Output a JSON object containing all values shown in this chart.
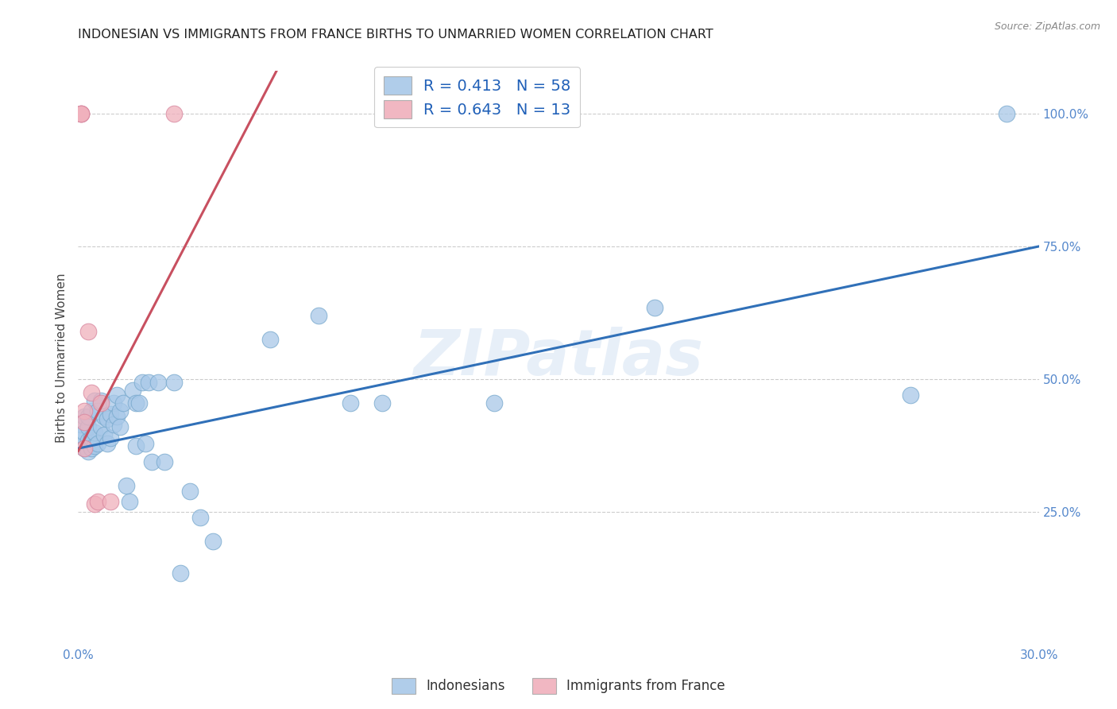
{
  "title": "INDONESIAN VS IMMIGRANTS FROM FRANCE BIRTHS TO UNMARRIED WOMEN CORRELATION CHART",
  "source": "Source: ZipAtlas.com",
  "ylabel": "Births to Unmarried Women",
  "xmin": 0.0,
  "xmax": 0.3,
  "ymin": 0.0,
  "ymax": 1.08,
  "x_ticks": [
    0.0,
    0.05,
    0.1,
    0.15,
    0.2,
    0.25,
    0.3
  ],
  "x_tick_labels": [
    "0.0%",
    "",
    "",
    "",
    "",
    "",
    "30.0%"
  ],
  "y_ticks": [
    0.0,
    0.25,
    0.5,
    0.75,
    1.0
  ],
  "y_tick_labels": [
    "",
    "25.0%",
    "50.0%",
    "75.0%",
    "100.0%"
  ],
  "blue_R": 0.413,
  "blue_N": 58,
  "pink_R": 0.643,
  "pink_N": 13,
  "blue_color": "#a8c8e8",
  "pink_color": "#f0b0bc",
  "blue_edge_color": "#7aaace",
  "pink_edge_color": "#d888a0",
  "blue_line_color": "#3070b8",
  "pink_line_color": "#c85060",
  "watermark": "ZIPatlas",
  "blue_scatter_x": [
    0.001,
    0.001,
    0.001,
    0.002,
    0.002,
    0.002,
    0.003,
    0.003,
    0.003,
    0.003,
    0.004,
    0.004,
    0.004,
    0.005,
    0.005,
    0.005,
    0.006,
    0.006,
    0.007,
    0.007,
    0.008,
    0.008,
    0.009,
    0.009,
    0.01,
    0.01,
    0.011,
    0.011,
    0.012,
    0.012,
    0.013,
    0.013,
    0.014,
    0.015,
    0.016,
    0.017,
    0.018,
    0.018,
    0.019,
    0.02,
    0.021,
    0.022,
    0.023,
    0.025,
    0.027,
    0.03,
    0.032,
    0.035,
    0.038,
    0.042,
    0.06,
    0.075,
    0.085,
    0.095,
    0.13,
    0.18,
    0.26,
    0.29
  ],
  "blue_scatter_y": [
    0.375,
    0.395,
    0.415,
    0.37,
    0.4,
    0.43,
    0.365,
    0.385,
    0.41,
    0.43,
    0.37,
    0.39,
    0.44,
    0.375,
    0.4,
    0.46,
    0.38,
    0.44,
    0.41,
    0.46,
    0.395,
    0.43,
    0.38,
    0.425,
    0.39,
    0.435,
    0.415,
    0.455,
    0.43,
    0.47,
    0.44,
    0.41,
    0.455,
    0.3,
    0.27,
    0.48,
    0.455,
    0.375,
    0.455,
    0.495,
    0.38,
    0.495,
    0.345,
    0.495,
    0.345,
    0.495,
    0.135,
    0.29,
    0.24,
    0.195,
    0.575,
    0.62,
    0.455,
    0.455,
    0.455,
    0.635,
    0.47,
    1.0
  ],
  "pink_scatter_x": [
    0.001,
    0.001,
    0.001,
    0.002,
    0.002,
    0.002,
    0.003,
    0.004,
    0.005,
    0.006,
    0.007,
    0.01,
    0.03
  ],
  "pink_scatter_y": [
    1.0,
    1.0,
    1.0,
    0.44,
    0.42,
    0.37,
    0.59,
    0.475,
    0.265,
    0.27,
    0.455,
    0.27,
    1.0
  ],
  "blue_line_x0": 0.0,
  "blue_line_y0": 0.37,
  "blue_line_x1": 0.3,
  "blue_line_y1": 0.75,
  "pink_line_x0": 0.0,
  "pink_line_y0": 0.365,
  "pink_line_x1": 0.055,
  "pink_line_y1": 1.0
}
